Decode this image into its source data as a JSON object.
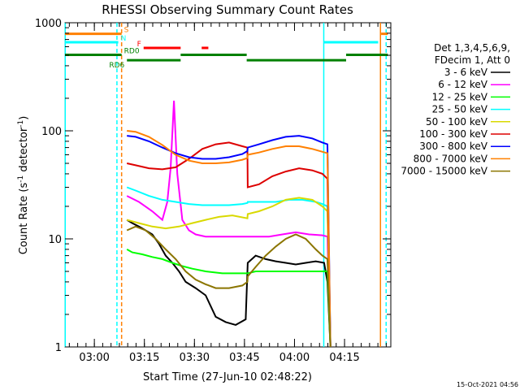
{
  "chart_data": {
    "type": "line",
    "title": "RHESSI Observing Summary Count Rates",
    "xlabel": "Start Time (27-Jun-10 02:48:22)",
    "ylabel_main": "Count Rate (s",
    "ylabel_sup": "-1",
    "ylabel_mid": " detector",
    "ylabel_tail": ")",
    "yscale": "log",
    "ylim": [
      1,
      1000
    ],
    "xlim_minutes": [
      2.83,
      100.5
    ],
    "x_unit": "minutes after 02:48:22",
    "x_ticks": [
      {
        "label": "03:00",
        "minute": 11.63
      },
      {
        "label": "03:15",
        "minute": 26.63
      },
      {
        "label": "03:30",
        "minute": 41.63
      },
      {
        "label": "03:45",
        "minute": 56.63
      },
      {
        "label": "04:00",
        "minute": 71.63
      },
      {
        "label": "04:15",
        "minute": 86.63
      }
    ],
    "y_ticks": [
      {
        "label": "1",
        "value": 1
      },
      {
        "label": "10",
        "value": 10
      },
      {
        "label": "100",
        "value": 100
      },
      {
        "label": "1000",
        "value": 1000
      }
    ],
    "legend": {
      "placement": "right",
      "header1": "Det 1,3,4,5,6,9,",
      "header2": "FDecim 1, Att 0"
    },
    "series": [
      {
        "name": "3 - 6 keV",
        "color": "#000000",
        "x": [
          21.4,
          23,
          25,
          27,
          29,
          31,
          33,
          35,
          37,
          39,
          42,
          45,
          48,
          51,
          54,
          57,
          57.6,
          60,
          63,
          66,
          69,
          72,
          75,
          78,
          80.5,
          81.5,
          82.4
        ],
        "y": [
          15,
          14,
          13,
          12,
          11,
          9,
          7,
          6,
          5,
          4,
          3.5,
          3,
          1.9,
          1.7,
          1.6,
          1.8,
          6,
          7,
          6.5,
          6.2,
          6,
          5.8,
          6,
          6.2,
          6,
          4,
          1
        ]
      },
      {
        "name": "6 - 12 keV",
        "color": "#ff00ff",
        "x": [
          21.4,
          25,
          29,
          32,
          33.5,
          34.5,
          35.5,
          36.5,
          38,
          40,
          42,
          45,
          48,
          52,
          56,
          57.5,
          57.6,
          60,
          64,
          68,
          72,
          76,
          80,
          81.5,
          82.4
        ],
        "y": [
          25,
          22,
          18,
          15,
          22,
          45,
          190,
          40,
          15,
          12,
          11,
          10.5,
          10.5,
          10.5,
          10.5,
          10.5,
          10.5,
          10.5,
          10.5,
          11,
          11.5,
          11,
          10.8,
          10.5,
          1
        ]
      },
      {
        "name": "12 - 25 keV",
        "color": "#00ff00",
        "x": [
          21.4,
          23,
          26,
          29,
          32,
          35,
          38,
          41,
          45,
          50,
          55,
          57.5,
          57.6,
          60,
          64,
          68,
          72,
          76,
          80,
          81.5,
          82.4
        ],
        "y": [
          8,
          7.5,
          7.2,
          6.8,
          6.5,
          6.0,
          5.6,
          5.3,
          5.0,
          4.8,
          4.8,
          4.8,
          4.8,
          5.0,
          5.0,
          5.0,
          5.0,
          5.0,
          5.0,
          5.0,
          1
        ]
      },
      {
        "name": "25 - 50 keV",
        "color": "#00ffff",
        "x": [
          21.4,
          24,
          28,
          32,
          36,
          40,
          44,
          48,
          52,
          56,
          57.5,
          57.6,
          62,
          66,
          70,
          74,
          78,
          80,
          81.5,
          82.4
        ],
        "y": [
          30,
          28,
          25,
          23,
          22,
          21,
          20.5,
          20.5,
          20.5,
          21,
          21.5,
          22,
          22,
          22,
          23,
          23,
          22,
          21,
          20,
          1
        ]
      },
      {
        "name": "50 - 100 keV",
        "color": "#d9d900",
        "x": [
          21.4,
          25,
          29,
          33,
          37,
          41,
          45,
          49,
          53,
          57.5,
          57.6,
          61,
          65,
          69,
          73,
          77,
          80,
          81.5,
          82.4
        ],
        "y": [
          15,
          14,
          13,
          12.5,
          13,
          14,
          15,
          16,
          16.5,
          15.5,
          17,
          18,
          20,
          23,
          24,
          23,
          20,
          18,
          1
        ]
      },
      {
        "name": "100 - 300 keV",
        "color": "#dd0000",
        "x": [
          21.4,
          24,
          28,
          32,
          36,
          40,
          44,
          48,
          52,
          56,
          57.5,
          57.6,
          61,
          65,
          69,
          73,
          77,
          80,
          81.5,
          82.4
        ],
        "y": [
          50,
          48,
          45,
          44,
          46,
          55,
          68,
          75,
          78,
          72,
          70,
          30,
          32,
          38,
          42,
          45,
          43,
          40,
          36,
          1
        ]
      },
      {
        "name": "300 - 800 keV",
        "color": "#0000ff",
        "x": [
          21.4,
          24,
          28,
          32,
          36,
          40,
          44,
          48,
          52,
          56,
          57.5,
          57.6,
          61,
          65,
          69,
          73,
          77,
          80,
          81.5,
          82.4
        ],
        "y": [
          90,
          88,
          80,
          70,
          62,
          57,
          55,
          55,
          57,
          61,
          65,
          70,
          75,
          82,
          88,
          90,
          85,
          78,
          75,
          1
        ]
      },
      {
        "name": "800 - 7000 keV",
        "color": "#ff8000",
        "x": [
          21.4,
          24,
          28,
          32,
          36,
          40,
          44,
          48,
          52,
          56,
          57.5,
          57.6,
          61,
          65,
          69,
          73,
          77,
          80,
          81.5,
          82.4
        ],
        "y": [
          100,
          98,
          88,
          74,
          60,
          53,
          50,
          50,
          51,
          54,
          56,
          60,
          63,
          68,
          72,
          72,
          68,
          64,
          62,
          1
        ]
      },
      {
        "name": "7000 - 15000 keV",
        "color": "#8b7500",
        "x": [
          21.4,
          24,
          27,
          30,
          33,
          36,
          39,
          42,
          45,
          48,
          52,
          56,
          57.5,
          57.6,
          60,
          63,
          66,
          69,
          72,
          75,
          78,
          80,
          81.5,
          82.4
        ],
        "y": [
          12,
          13,
          12,
          10,
          8,
          6.5,
          5,
          4.2,
          3.8,
          3.5,
          3.5,
          3.7,
          4.0,
          4.5,
          5.5,
          7,
          8.5,
          10,
          11,
          10,
          8,
          7,
          6.5,
          1
        ]
      }
    ],
    "flag_bars": [
      {
        "label": "S",
        "color": "#ff8000",
        "level": 790,
        "segments": [
          [
            2.83,
            19.8
          ],
          [
            97.6,
            99.6
          ]
        ]
      },
      {
        "label": "N",
        "color": "#00ffff",
        "level": 660,
        "segments": [
          [
            2.83,
            18.8
          ],
          [
            80.4,
            96.7
          ]
        ]
      },
      {
        "label": "F",
        "color": "#ff0000",
        "level": 585,
        "segments": [
          [
            26.4,
            37.5
          ],
          [
            43.8,
            45.8
          ]
        ]
      },
      {
        "label": "RD0",
        "color": "#008000",
        "level": 505,
        "segments": [
          [
            2.83,
            19.8
          ],
          [
            37.5,
            57.3
          ],
          [
            87.1,
            99.6
          ]
        ]
      },
      {
        "label": "RD6",
        "color": "#008000",
        "level": 450,
        "segments": [
          [
            21.4,
            37.5
          ],
          [
            57.3,
            87.1
          ]
        ]
      }
    ],
    "vertical_markers": [
      {
        "color": "#00ffff",
        "style": "solid",
        "minute": 2.9
      },
      {
        "color": "#00ffff",
        "style": "dashed",
        "minute": 18.4
      },
      {
        "color": "#ff8000",
        "style": "dashed",
        "minute": 19.8
      },
      {
        "color": "#00ffff",
        "style": "solid",
        "minute": 80.4
      },
      {
        "color": "#ff8000",
        "style": "solid",
        "minute": 97.4
      },
      {
        "color": "#00ffff",
        "style": "dashed",
        "minute": 99.1
      }
    ],
    "footer_date": "15-Oct-2021 04:56"
  }
}
